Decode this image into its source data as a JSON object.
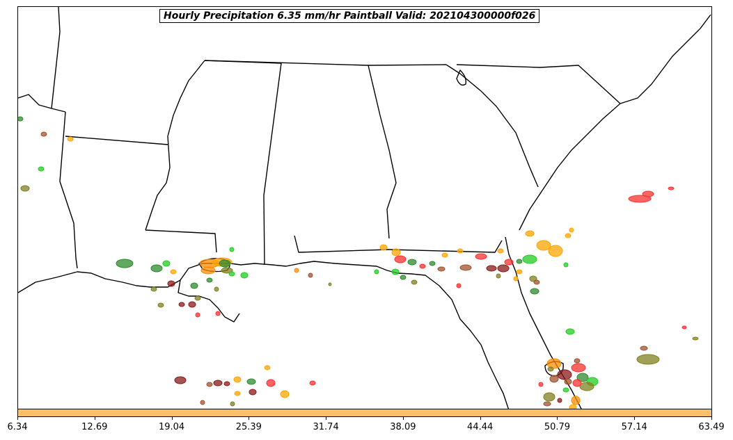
{
  "title": "Hourly Precipitation 6.35 mm/hr Paintball Valid: 202104300000f026",
  "colorbar": {
    "color": "#ffbf66",
    "ticks": [
      "6.34",
      "12.69",
      "19.04",
      "25.39",
      "31.74",
      "38.09",
      "44.44",
      "50.79",
      "57.14",
      "63.49"
    ]
  },
  "member_colors": [
    "#2e8b2e",
    "#ff8c00",
    "#ffa500",
    "#8b1a1a",
    "#ff3030",
    "#808020",
    "#22cc22",
    "#a0522d"
  ]
}
